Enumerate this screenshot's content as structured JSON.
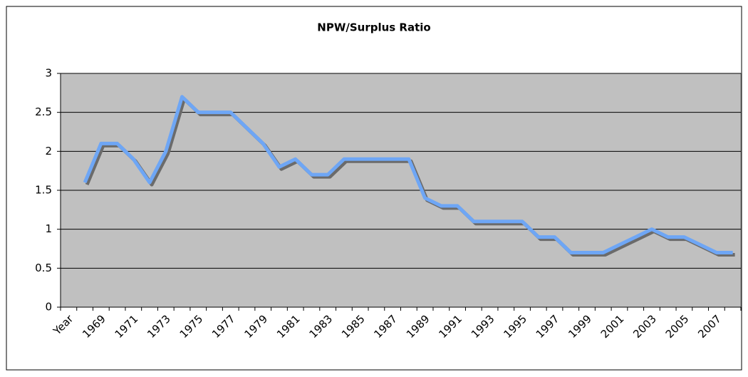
{
  "chart_data": {
    "type": "line",
    "title": "NPW/Surplus Ratio",
    "categories": [
      "Year",
      null,
      "1969",
      null,
      "1971",
      null,
      "1973",
      null,
      "1975",
      null,
      "1977",
      null,
      "1979",
      null,
      "1981",
      null,
      "1983",
      null,
      "1985",
      null,
      "1987",
      null,
      "1989",
      null,
      "1991",
      null,
      "1993",
      null,
      "1995",
      null,
      "1997",
      null,
      "1999",
      null,
      "2001",
      null,
      "2003",
      null,
      "2005",
      null,
      "2007",
      null
    ],
    "series": [
      {
        "name": "NPW/Surplus Ratio",
        "color": "#6ea6f5",
        "values": [
          null,
          1.6,
          2.1,
          2.1,
          1.9,
          1.6,
          2.0,
          2.7,
          2.5,
          2.5,
          2.5,
          2.3,
          2.1,
          1.8,
          1.9,
          1.7,
          1.7,
          1.9,
          1.9,
          1.9,
          1.9,
          1.9,
          1.4,
          1.3,
          1.3,
          1.1,
          1.1,
          1.1,
          1.1,
          0.9,
          0.9,
          0.7,
          0.7,
          0.7,
          0.8,
          0.9,
          1.0,
          0.9,
          0.9,
          0.8,
          0.7,
          0.7
        ]
      }
    ],
    "ylim": [
      0,
      3
    ],
    "yticks": [
      0,
      0.5,
      1,
      1.5,
      2,
      2.5,
      3
    ],
    "grid": true,
    "legend": false
  }
}
